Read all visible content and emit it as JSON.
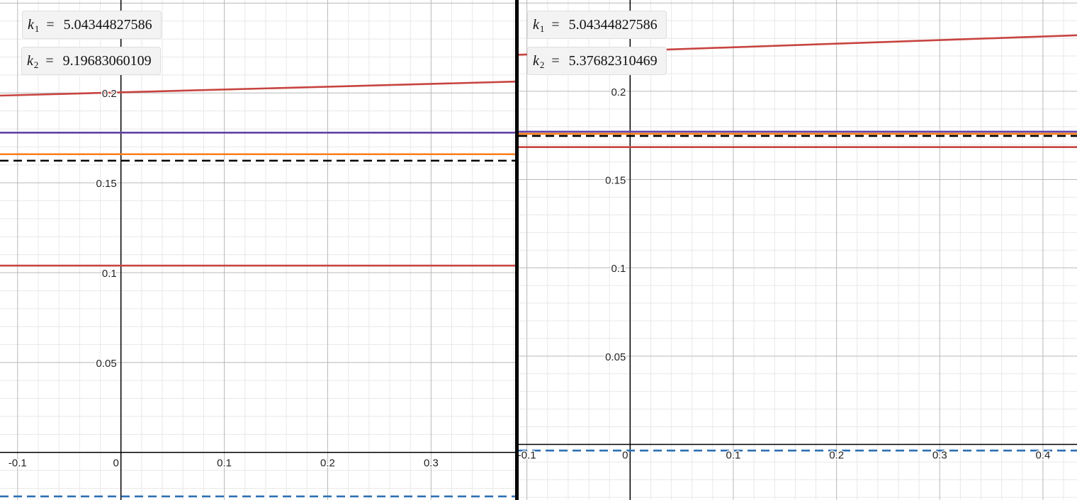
{
  "panels": [
    {
      "id": "left",
      "sliders": [
        {
          "var": "k",
          "sub": "1",
          "eq": "=",
          "value": "5.04344827586"
        },
        {
          "var": "k",
          "sub": "2",
          "eq": "=",
          "value": "9.19683060109"
        }
      ]
    },
    {
      "id": "right",
      "sliders": [
        {
          "var": "k",
          "sub": "1",
          "eq": "=",
          "value": "5.04344827586"
        },
        {
          "var": "k",
          "sub": "2",
          "eq": "=",
          "value": "5.37682310469"
        }
      ]
    }
  ],
  "colors": {
    "red": "#c74440",
    "purple": "#6042a6",
    "orange": "#fa7e19",
    "black": "#000000",
    "blue": "#2d70b3",
    "axis": "#000000",
    "grid_major": "#b8b8b8",
    "grid_minor": "#e8e8e8"
  },
  "chart_data": [
    {
      "type": "line",
      "panel": "left",
      "grid": true,
      "xlim": [
        -0.117,
        0.382
      ],
      "ylim": [
        -0.0265,
        0.2517
      ],
      "x_ticks": [
        -0.1,
        0,
        0.1,
        0.2,
        0.3
      ],
      "x_tick_labels": [
        "-0.1",
        "0",
        "0.1",
        "0.2",
        "0.3"
      ],
      "y_ticks": [
        0.05,
        0.1,
        0.15,
        0.2
      ],
      "y_tick_labels": [
        "0.05",
        "0.1",
        "0.15",
        "0.2"
      ],
      "series": [
        {
          "color": "#c74440",
          "style": "solid",
          "x": [
            -0.117,
            0.382
          ],
          "y": [
            0.1985,
            0.2063
          ]
        },
        {
          "color": "#6042a6",
          "style": "solid",
          "x": [
            -0.117,
            0.382
          ],
          "y": [
            0.1779,
            0.1779
          ]
        },
        {
          "color": "#fa7e19",
          "style": "solid",
          "x": [
            -0.117,
            0.382
          ],
          "y": [
            0.1659,
            0.1659
          ]
        },
        {
          "color": "#000000",
          "style": "dashed",
          "x": [
            -0.117,
            0.382
          ],
          "y": [
            0.1623,
            0.1623
          ]
        },
        {
          "color": "#c74440",
          "style": "solid",
          "x": [
            -0.117,
            0.382
          ],
          "y": [
            0.1039,
            0.1039
          ]
        },
        {
          "color": "#2d70b3",
          "style": "dashed",
          "x": [
            -0.117,
            0.382
          ],
          "y": [
            -0.0245,
            -0.0245
          ]
        }
      ]
    },
    {
      "type": "line",
      "panel": "right",
      "grid": true,
      "xlim": [
        -0.108,
        0.433
      ],
      "ylim": [
        -0.0315,
        0.2517
      ],
      "x_ticks": [
        -0.1,
        0,
        0.1,
        0.2,
        0.3,
        0.4
      ],
      "x_tick_labels": [
        "-0.1",
        "0",
        "0.1",
        "0.2",
        "0.3",
        "0.4"
      ],
      "y_ticks": [
        0.05,
        0.1,
        0.15,
        0.2
      ],
      "y_tick_labels": [
        "0.05",
        "0.1",
        "0.15",
        "0.2"
      ],
      "series": [
        {
          "color": "#c74440",
          "style": "solid",
          "x": [
            -0.108,
            0.433
          ],
          "y": [
            0.2207,
            0.2317
          ]
        },
        {
          "color": "#6042a6",
          "style": "solid",
          "x": [
            -0.108,
            0.433
          ],
          "y": [
            0.1771,
            0.1771
          ]
        },
        {
          "color": "#fa7e19",
          "style": "solid",
          "x": [
            -0.108,
            0.433
          ],
          "y": [
            0.1759,
            0.1759
          ]
        },
        {
          "color": "#000000",
          "style": "dashed",
          "x": [
            -0.108,
            0.433
          ],
          "y": [
            0.1747,
            0.1747
          ]
        },
        {
          "color": "#c74440",
          "style": "solid",
          "x": [
            -0.108,
            0.433
          ],
          "y": [
            0.1684,
            0.1684
          ]
        },
        {
          "color": "#2d70b3",
          "style": "dashed",
          "x": [
            -0.108,
            0.433
          ],
          "y": [
            -0.0035,
            -0.0035
          ]
        }
      ]
    }
  ]
}
